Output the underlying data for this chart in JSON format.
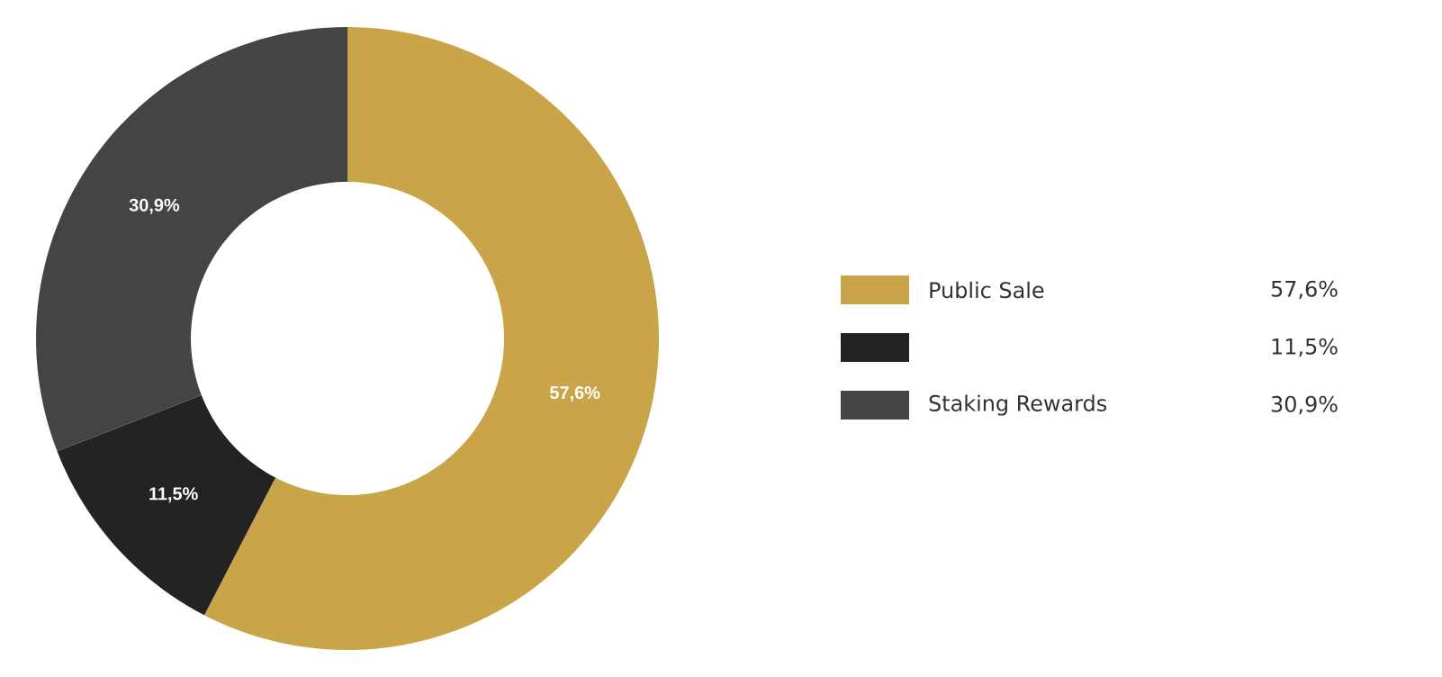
{
  "chart_data": {
    "type": "donut",
    "categories": [
      "Public Sale",
      null,
      "Staking Rewards"
    ],
    "values": [
      57.6,
      11.5,
      30.9
    ],
    "colors": [
      "#c9a449",
      "#232323",
      "#444444"
    ],
    "value_labels": [
      "57,6%",
      "11,5%",
      "30,9%"
    ],
    "legend": "right"
  }
}
